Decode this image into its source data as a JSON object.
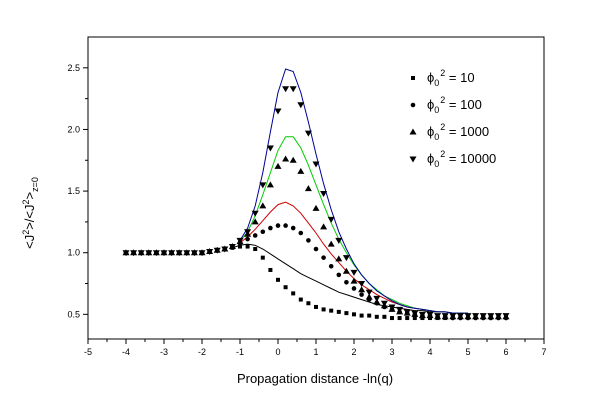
{
  "chart_data": {
    "type": "scatter",
    "title": "",
    "xlabel": "Propagation distance -ln(q)",
    "ylabel_parts": {
      "a": "<J",
      "b": "2",
      "c": ">/<J",
      "d": "2",
      "e": ">",
      "f": "z=0"
    },
    "xlim": [
      -5,
      7
    ],
    "ylim": [
      0.3,
      2.75
    ],
    "xticks": [
      -5,
      -4,
      -3,
      -2,
      -1,
      0,
      1,
      2,
      3,
      4,
      5,
      6,
      7
    ],
    "xtick_labels": [
      "-5",
      "-4",
      "-3",
      "-2",
      "-1",
      "0",
      "1",
      "2",
      "3",
      "4",
      "5",
      "6",
      "7"
    ],
    "yticks": [
      0.5,
      1.0,
      1.5,
      2.0,
      2.5
    ],
    "ytick_labels": [
      "0.5",
      "1.0",
      "1.5",
      "2.0",
      "2.5"
    ],
    "legend_position": "top-right",
    "series": [
      {
        "label_prefix": "ϕ",
        "label_sub": "0",
        "label_sup": "2",
        "label_value": " = 10",
        "marker": "square",
        "color": "#000000",
        "x": [
          -4.0,
          -3.8,
          -3.6,
          -3.4,
          -3.2,
          -3.0,
          -2.8,
          -2.6,
          -2.4,
          -2.2,
          -2.0,
          -1.8,
          -1.6,
          -1.4,
          -1.2,
          -1.0,
          -0.8,
          -0.6,
          -0.4,
          -0.2,
          0.0,
          0.2,
          0.4,
          0.6,
          0.8,
          1.0,
          1.2,
          1.4,
          1.6,
          1.8,
          2.0,
          2.2,
          2.4,
          2.6,
          2.8,
          3.0,
          3.2,
          3.4,
          3.6,
          3.8,
          4.0,
          4.2,
          4.4,
          4.6,
          4.8,
          5.0,
          5.2,
          5.4,
          5.6,
          5.8,
          6.0
        ],
        "y": [
          1.0,
          1.0,
          1.0,
          1.0,
          1.0,
          1.0,
          1.0,
          1.0,
          1.0,
          1.0,
          1.0,
          1.01,
          1.02,
          1.03,
          1.04,
          1.05,
          1.05,
          1.03,
          0.96,
          0.86,
          0.78,
          0.72,
          0.67,
          0.62,
          0.59,
          0.56,
          0.54,
          0.53,
          0.52,
          0.51,
          0.5,
          0.49,
          0.49,
          0.48,
          0.48,
          0.47,
          0.47,
          0.47,
          0.47,
          0.47,
          0.47,
          0.47,
          0.47,
          0.48,
          0.48,
          0.48,
          0.48,
          0.48,
          0.48,
          0.48,
          0.48
        ]
      },
      {
        "label_prefix": "ϕ",
        "label_sub": "0",
        "label_sup": "2",
        "label_value": " = 100",
        "marker": "circle",
        "color": "#000000",
        "x": [
          -4.0,
          -3.8,
          -3.6,
          -3.4,
          -3.2,
          -3.0,
          -2.8,
          -2.6,
          -2.4,
          -2.2,
          -2.0,
          -1.8,
          -1.6,
          -1.4,
          -1.2,
          -1.0,
          -0.8,
          -0.6,
          -0.4,
          -0.2,
          0.0,
          0.2,
          0.4,
          0.6,
          0.8,
          1.0,
          1.2,
          1.4,
          1.6,
          1.8,
          2.0,
          2.2,
          2.4,
          2.6,
          2.8,
          3.0,
          3.2,
          3.4,
          3.6,
          3.8,
          4.0,
          4.2,
          4.4,
          4.6,
          4.8,
          5.0,
          5.2,
          5.4,
          5.6,
          5.8,
          6.0
        ],
        "y": [
          1.0,
          1.0,
          1.0,
          1.0,
          1.0,
          1.0,
          1.0,
          1.0,
          1.0,
          1.0,
          1.0,
          1.01,
          1.02,
          1.03,
          1.05,
          1.08,
          1.11,
          1.14,
          1.17,
          1.2,
          1.22,
          1.22,
          1.2,
          1.16,
          1.1,
          1.03,
          0.96,
          0.89,
          0.82,
          0.76,
          0.71,
          0.66,
          0.62,
          0.59,
          0.56,
          0.54,
          0.52,
          0.51,
          0.5,
          0.49,
          0.49,
          0.48,
          0.48,
          0.47,
          0.47,
          0.47,
          0.47,
          0.47,
          0.47,
          0.47,
          0.47
        ]
      },
      {
        "label_prefix": "ϕ",
        "label_sub": "0",
        "label_sup": "2",
        "label_value": " = 1000",
        "marker": "triangle-up",
        "color": "#000000",
        "x": [
          -4.0,
          -3.8,
          -3.6,
          -3.4,
          -3.2,
          -3.0,
          -2.8,
          -2.6,
          -2.4,
          -2.2,
          -2.0,
          -1.8,
          -1.6,
          -1.4,
          -1.2,
          -1.0,
          -0.8,
          -0.6,
          -0.4,
          -0.2,
          0.0,
          0.2,
          0.4,
          0.6,
          0.8,
          1.0,
          1.2,
          1.4,
          1.6,
          1.8,
          2.0,
          2.2,
          2.4,
          2.6,
          2.8,
          3.0,
          3.2,
          3.4,
          3.6,
          3.8,
          4.0,
          4.2,
          4.4,
          4.6,
          4.8,
          5.0,
          5.2,
          5.4,
          5.6,
          5.8,
          6.0
        ],
        "y": [
          1.0,
          1.0,
          1.0,
          1.0,
          1.0,
          1.0,
          1.0,
          1.0,
          1.0,
          1.0,
          1.0,
          1.01,
          1.02,
          1.03,
          1.05,
          1.09,
          1.15,
          1.25,
          1.38,
          1.55,
          1.7,
          1.76,
          1.75,
          1.66,
          1.52,
          1.36,
          1.21,
          1.07,
          0.95,
          0.85,
          0.77,
          0.7,
          0.64,
          0.6,
          0.57,
          0.54,
          0.52,
          0.51,
          0.5,
          0.49,
          0.49,
          0.48,
          0.48,
          0.48,
          0.48,
          0.48,
          0.48,
          0.48,
          0.48,
          0.48,
          0.48
        ]
      },
      {
        "label_prefix": "ϕ",
        "label_sub": "0",
        "label_sup": "2",
        "label_value": " = 10000",
        "marker": "triangle-down",
        "color": "#000000",
        "x": [
          -4.0,
          -3.8,
          -3.6,
          -3.4,
          -3.2,
          -3.0,
          -2.8,
          -2.6,
          -2.4,
          -2.2,
          -2.0,
          -1.8,
          -1.6,
          -1.4,
          -1.2,
          -1.0,
          -0.8,
          -0.6,
          -0.4,
          -0.2,
          0.0,
          0.2,
          0.4,
          0.6,
          0.8,
          1.0,
          1.2,
          1.4,
          1.6,
          1.8,
          2.0,
          2.2,
          2.4,
          2.6,
          2.8,
          3.0,
          3.2,
          3.4,
          3.6,
          3.8,
          4.0,
          4.2,
          4.4,
          4.6,
          4.8,
          5.0,
          5.2,
          5.4,
          5.6,
          5.8,
          6.0
        ],
        "y": [
          1.0,
          1.0,
          1.0,
          1.0,
          1.0,
          1.0,
          1.0,
          1.0,
          1.0,
          1.0,
          1.0,
          1.01,
          1.02,
          1.03,
          1.05,
          1.1,
          1.17,
          1.32,
          1.55,
          1.85,
          2.15,
          2.33,
          2.33,
          2.2,
          1.97,
          1.72,
          1.48,
          1.27,
          1.1,
          0.96,
          0.84,
          0.75,
          0.68,
          0.63,
          0.59,
          0.56,
          0.54,
          0.52,
          0.51,
          0.5,
          0.5,
          0.49,
          0.49,
          0.49,
          0.49,
          0.49,
          0.49,
          0.49,
          0.49,
          0.49,
          0.49
        ]
      }
    ],
    "curves": [
      {
        "color": "#000000",
        "x": [
          -1.2,
          -1.0,
          -0.8,
          -0.6,
          -0.4,
          -0.2,
          0.0,
          0.2,
          0.4,
          0.6,
          0.8,
          1.0,
          1.2,
          1.4,
          1.6,
          1.8,
          2.0,
          2.2,
          2.4,
          2.6,
          2.8,
          3.0,
          3.2,
          3.4,
          3.6,
          3.8,
          4.0,
          4.2,
          4.4,
          4.6,
          4.8,
          5.0
        ],
        "y": [
          1.04,
          1.06,
          1.07,
          1.06,
          1.03,
          0.99,
          0.95,
          0.91,
          0.87,
          0.83,
          0.8,
          0.77,
          0.74,
          0.71,
          0.68,
          0.66,
          0.64,
          0.62,
          0.6,
          0.58,
          0.57,
          0.56,
          0.55,
          0.54,
          0.53,
          0.53,
          0.52,
          0.52,
          0.52,
          0.51,
          0.51,
          0.51
        ]
      },
      {
        "color": "#cc0000",
        "x": [
          -1.0,
          -0.8,
          -0.6,
          -0.4,
          -0.2,
          0.0,
          0.2,
          0.4,
          0.6,
          0.8,
          1.0,
          1.2,
          1.4,
          1.6,
          1.8,
          2.0,
          2.2,
          2.4,
          2.6,
          2.8,
          3.0,
          3.2,
          3.4,
          3.6,
          3.8,
          4.0,
          4.2,
          4.4,
          4.6,
          4.8,
          5.0
        ],
        "y": [
          1.08,
          1.13,
          1.19,
          1.26,
          1.33,
          1.39,
          1.41,
          1.38,
          1.32,
          1.24,
          1.16,
          1.07,
          0.99,
          0.92,
          0.85,
          0.79,
          0.74,
          0.7,
          0.66,
          0.63,
          0.6,
          0.58,
          0.56,
          0.55,
          0.54,
          0.53,
          0.52,
          0.52,
          0.51,
          0.51,
          0.51
        ]
      },
      {
        "color": "#00cc00",
        "x": [
          -1.0,
          -0.8,
          -0.6,
          -0.4,
          -0.2,
          0.0,
          0.2,
          0.4,
          0.6,
          0.8,
          1.0,
          1.2,
          1.4,
          1.6,
          1.8,
          2.0,
          2.2,
          2.4,
          2.6,
          2.8,
          3.0,
          3.2,
          3.4,
          3.6,
          3.8,
          4.0,
          4.2,
          4.4,
          4.6,
          4.8,
          5.0
        ],
        "y": [
          1.09,
          1.17,
          1.3,
          1.47,
          1.65,
          1.83,
          1.94,
          1.94,
          1.85,
          1.71,
          1.55,
          1.39,
          1.24,
          1.11,
          1.0,
          0.9,
          0.82,
          0.75,
          0.7,
          0.65,
          0.62,
          0.59,
          0.57,
          0.55,
          0.54,
          0.53,
          0.52,
          0.52,
          0.51,
          0.51,
          0.51
        ]
      },
      {
        "color": "#000099",
        "x": [
          -1.0,
          -0.8,
          -0.6,
          -0.4,
          -0.2,
          0.0,
          0.2,
          0.4,
          0.6,
          0.8,
          1.0,
          1.2,
          1.4,
          1.6,
          1.8,
          2.0,
          2.2,
          2.4,
          2.6,
          2.8,
          3.0,
          3.2,
          3.4,
          3.6,
          3.8,
          4.0,
          4.2,
          4.4,
          4.6,
          4.8,
          5.0
        ],
        "y": [
          1.1,
          1.2,
          1.38,
          1.65,
          1.98,
          2.3,
          2.49,
          2.47,
          2.3,
          2.06,
          1.8,
          1.56,
          1.35,
          1.17,
          1.03,
          0.91,
          0.82,
          0.75,
          0.69,
          0.65,
          0.61,
          0.58,
          0.56,
          0.55,
          0.54,
          0.53,
          0.52,
          0.52,
          0.51,
          0.51,
          0.51
        ]
      }
    ]
  }
}
